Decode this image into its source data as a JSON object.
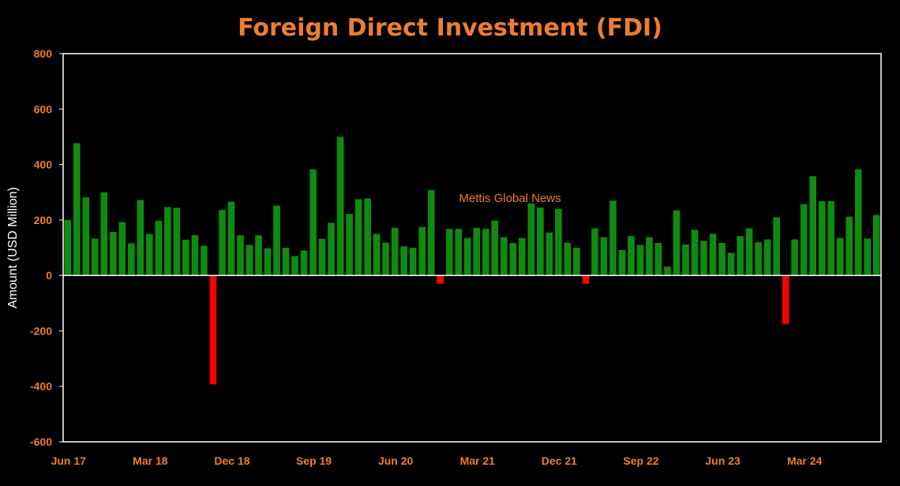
{
  "chart_data": {
    "type": "bar",
    "title": "Foreign Direct Investment (FDI)",
    "ylabel": "Amount (USD Million)",
    "xlabel": "",
    "ylim": [
      -600,
      800
    ],
    "yticks": [
      800,
      600,
      400,
      200,
      0,
      -200,
      -400,
      -600
    ],
    "x_tick_labels": [
      "Jun 17",
      "Mar 18",
      "Dec 18",
      "Sep 19",
      "Jun 20",
      "Mar 21",
      "Dec 21",
      "Sep 22",
      "Jun 23",
      "Mar 24"
    ],
    "x_tick_label_every": 9,
    "annotation": "Mettis Global News",
    "grid": false,
    "legend": "none",
    "positive_color": "#108A10",
    "negative_color": "#FF0000",
    "categories": [
      "Jun 17",
      "Jul 17",
      "Aug 17",
      "Sep 17",
      "Oct 17",
      "Nov 17",
      "Dec 17",
      "Jan 18",
      "Feb 18",
      "Mar 18",
      "Apr 18",
      "May 18",
      "Jun 18",
      "Jul 18",
      "Aug 18",
      "Sep 18",
      "Oct 18",
      "Nov 18",
      "Dec 18",
      "Jan 19",
      "Feb 19",
      "Mar 19",
      "Apr 19",
      "May 19",
      "Jun 19",
      "Jul 19",
      "Aug 19",
      "Sep 19",
      "Oct 19",
      "Nov 19",
      "Dec 19",
      "Jan 20",
      "Feb 20",
      "Mar 20",
      "Apr 20",
      "May 20",
      "Jun 20",
      "Jul 20",
      "Aug 20",
      "Sep 20",
      "Oct 20",
      "Nov 20",
      "Dec 20",
      "Jan 21",
      "Feb 21",
      "Mar 21",
      "Apr 21",
      "May 21",
      "Jun 21",
      "Jul 21",
      "Aug 21",
      "Sep 21",
      "Oct 21",
      "Nov 21",
      "Dec 21",
      "Jan 22",
      "Feb 22",
      "Mar 22",
      "Apr 22",
      "May 22",
      "Jun 22",
      "Jul 22",
      "Aug 22",
      "Sep 22",
      "Oct 22",
      "Nov 22",
      "Dec 22",
      "Jan 23",
      "Feb 23",
      "Mar 23",
      "Apr 23",
      "May 23",
      "Jun 23",
      "Jul 23",
      "Aug 23",
      "Sep 23",
      "Oct 23",
      "Nov 23",
      "Dec 23",
      "Jan 24",
      "Feb 24",
      "Mar 24",
      "Apr 24",
      "May 24",
      "Jun 24",
      "Jul 24",
      "Aug 24",
      "Sep 24",
      "Oct 24",
      "Nov 24"
    ],
    "values": [
      200,
      477,
      282,
      133,
      300,
      157,
      193,
      116,
      272,
      150,
      197,
      247,
      244,
      129,
      145,
      107,
      -393,
      236,
      266,
      145,
      110,
      145,
      98,
      252,
      100,
      70,
      90,
      383,
      132,
      190,
      500,
      222,
      275,
      278,
      150,
      118,
      172,
      105,
      100,
      175,
      308,
      -30,
      168,
      168,
      135,
      172,
      168,
      198,
      138,
      117,
      135,
      260,
      245,
      155,
      240,
      118,
      100,
      -30,
      170,
      138,
      270,
      92,
      142,
      110,
      138,
      117,
      32,
      235,
      112,
      165,
      125,
      150,
      117,
      82,
      142,
      170,
      120,
      130,
      210,
      -175,
      130,
      257,
      358,
      268,
      268,
      135,
      212,
      383,
      133,
      218
    ]
  }
}
